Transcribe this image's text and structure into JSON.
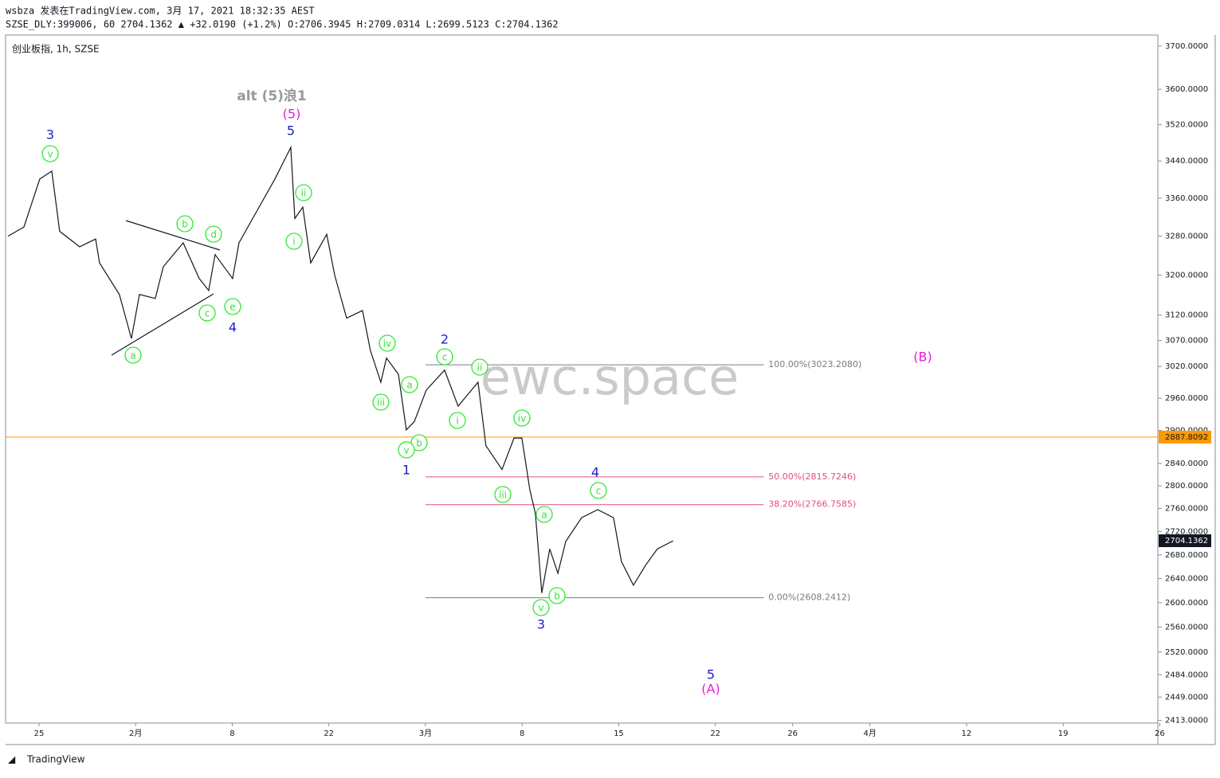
{
  "header": {
    "publisher": "wsbza 发表在TradingView.com, 3月 17, 2021 18:32:35 AEST",
    "quote": "SZSE_DLY:399006, 60 2704.1362 ▲ +32.0190 (+1.2%) O:2706.3945 H:2709.0314 L:2699.5123 C:2704.1362",
    "symbol": "创业板指, 1h, SZSE"
  },
  "watermark": "ewc.space",
  "footer": "TradingView",
  "chart_data": {
    "type": "line",
    "log_scale": true,
    "grid": false,
    "color": "#131722",
    "x": [
      -1.61,
      -0.78,
      0.04,
      0.66,
      1.07,
      2.1,
      2.93,
      3.13,
      4.16,
      4.78,
      5.2,
      6.02,
      6.43,
      7.46,
      8.29,
      8.78,
      9.11,
      10.02,
      10.35,
      11.18,
      12.21,
      13.03,
      13.24,
      13.65,
      14.06,
      14.89,
      15.3,
      15.92,
      16.74,
      17.15,
      17.69,
      17.98,
      18.6,
      19.01,
      19.42,
      20.04,
      20.99,
      21.69,
      22.72,
      23.13,
      23.96,
      24.58,
      24.99,
      25.4,
      25.69,
      26.02,
      26.43,
      26.85,
      27.26,
      28.08,
      28.91,
      29.73,
      30.14,
      30.76,
      31.38,
      32.0,
      32.82
    ],
    "values": [
      3280,
      3299,
      3401,
      3418,
      3290,
      3258,
      3274,
      3225,
      3161,
      3074,
      3161,
      3153,
      3217,
      3266,
      3193,
      3169,
      3242,
      3193,
      3266,
      3326,
      3401,
      3470,
      3317,
      3341,
      3225,
      3284,
      3200,
      3114,
      3129,
      3051,
      2990,
      3036,
      3005,
      2901,
      2916,
      2975,
      3013,
      2945,
      2990,
      2872,
      2829,
      2886,
      2886,
      2793,
      2751,
      2616,
      2690,
      2649,
      2703,
      2744,
      2758,
      2744,
      2669,
      2629,
      2662,
      2690,
      2704
    ],
    "xlim": [
      -1.73,
      57.9
    ],
    "xticks": [
      {
        "value": 0,
        "label": "25"
      },
      {
        "value": 5,
        "label": "2月"
      },
      {
        "value": 10,
        "label": "8"
      },
      {
        "value": 15,
        "label": "22"
      },
      {
        "value": 20,
        "label": "3月"
      },
      {
        "value": 25,
        "label": "8"
      },
      {
        "value": 30,
        "label": "15"
      },
      {
        "value": 35,
        "label": "22"
      },
      {
        "value": 39,
        "label": "26"
      },
      {
        "value": 43,
        "label": "4月"
      },
      {
        "value": 48,
        "label": "12"
      },
      {
        "value": 53,
        "label": "19"
      },
      {
        "value": 58,
        "label": "26"
      }
    ],
    "ylim": [
      2409,
      3726
    ],
    "yticks": [
      {
        "value": 3700,
        "label": "3700.0000"
      },
      {
        "value": 3600,
        "label": "3600.0000"
      },
      {
        "value": 3520,
        "label": "3520.0000"
      },
      {
        "value": 3440,
        "label": "3440.0000"
      },
      {
        "value": 3360,
        "label": "3360.0000"
      },
      {
        "value": 3280,
        "label": "3280.0000"
      },
      {
        "value": 3200,
        "label": "3200.0000"
      },
      {
        "value": 3120,
        "label": "3120.0000"
      },
      {
        "value": 3070,
        "label": "3070.0000"
      },
      {
        "value": 3020,
        "label": "3020.0000"
      },
      {
        "value": 2960,
        "label": "2960.0000"
      },
      {
        "value": 2900,
        "label": "2900.0000"
      },
      {
        "value": 2840,
        "label": "2840.0000"
      },
      {
        "value": 2800,
        "label": "2800.0000"
      },
      {
        "value": 2760,
        "label": "2760.0000"
      },
      {
        "value": 2720,
        "label": "2720.0000"
      },
      {
        "value": 2680,
        "label": "2680.0000"
      },
      {
        "value": 2640,
        "label": "2640.0000"
      },
      {
        "value": 2600,
        "label": "2600.0000"
      },
      {
        "value": 2560,
        "label": "2560.0000"
      },
      {
        "value": 2520,
        "label": "2520.0000"
      },
      {
        "value": 2484,
        "label": "2484.0000"
      },
      {
        "value": 2449,
        "label": "2449.0000"
      },
      {
        "value": 2413,
        "label": "2413.0000"
      }
    ],
    "fib_levels": {
      "values": [
        3023.208,
        2815.7246,
        2766.7585,
        2608.2412
      ],
      "value_labels": [
        "100.00%(3023.2080)",
        "50.00%(2815.7246)",
        "38.20%(2766.7585)",
        "0.00%(2608.2412)"
      ],
      "colors": [
        "#787b86",
        "#e0507a",
        "#e0507a",
        "#787b86"
      ],
      "x_range": [
        20,
        37.5
      ]
    },
    "horizontal_line": {
      "value": 2887.8092,
      "color": "#ff9800"
    },
    "last_price": {
      "value": 2704.1362,
      "color": "#131722"
    },
    "wave_labels_green": {
      "color": "#2ee82e",
      "labels": [
        "v",
        "b",
        "d",
        "a",
        "c",
        "e",
        "ii",
        "i",
        "iv",
        "iii",
        "a",
        "b",
        "v",
        "c",
        "i",
        "ii",
        "iv",
        "iii",
        "a",
        "b",
        "v",
        "c"
      ]
    },
    "wave_labels_blue": {
      "color": "#1c1cc8",
      "labels": [
        "3",
        "4",
        "5",
        "1",
        "2",
        "3",
        "4",
        "5"
      ]
    },
    "wave_labels_magenta": {
      "color": "#e21fd6",
      "labels": [
        "(5)",
        "(B)",
        "(A)"
      ]
    },
    "alt_label": {
      "text": "alt (5)浪1",
      "color": "#999999"
    }
  }
}
